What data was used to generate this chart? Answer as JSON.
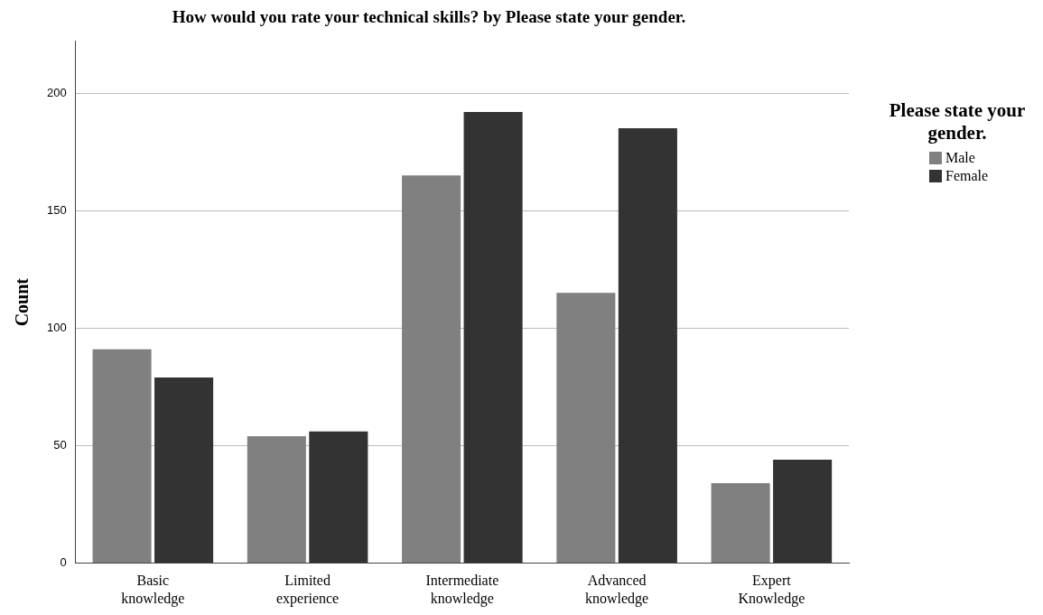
{
  "chart_data": {
    "type": "bar",
    "title": "How would you rate your technical skills? by Please state your gender.",
    "ylabel": "Count",
    "legend_title": "Please state your gender.",
    "categories": [
      "Basic knowledge",
      "Limited experience",
      "Intermediate knowledge",
      "Advanced knowledge",
      "Expert Knowledge"
    ],
    "series": [
      {
        "name": "Male",
        "color": "#808080",
        "values": [
          91,
          54,
          165,
          115,
          34
        ]
      },
      {
        "name": "Female",
        "color": "#333333",
        "values": [
          79,
          56,
          192,
          185,
          44
        ]
      }
    ],
    "ylim": [
      0,
      222
    ],
    "yticks": [
      0,
      50,
      100,
      150,
      200
    ],
    "grid": "y",
    "legend": "right"
  }
}
